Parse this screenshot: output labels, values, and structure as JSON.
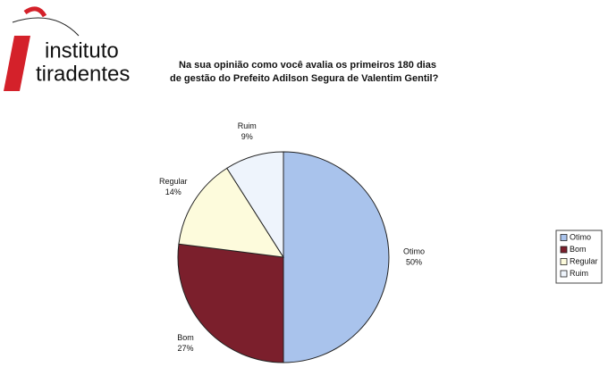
{
  "logo": {
    "line1": "instituto",
    "line2": "tiradentes"
  },
  "chart_data": {
    "type": "pie",
    "title": [
      "Na sua opinião como você avalia os primeiros 180 dias",
      "de gestão do Prefeito Adilson Segura de Valentim Gentil?"
    ],
    "categories": [
      "Otimo",
      "Bom",
      "Regular",
      "Ruim"
    ],
    "values": [
      50,
      27,
      14,
      9
    ],
    "value_labels": [
      "50%",
      "27%",
      "14%",
      "9%"
    ],
    "colors": [
      "#a9c3ec",
      "#7b1f2c",
      "#fdfbdc",
      "#eef4fc"
    ],
    "legend": "right"
  }
}
